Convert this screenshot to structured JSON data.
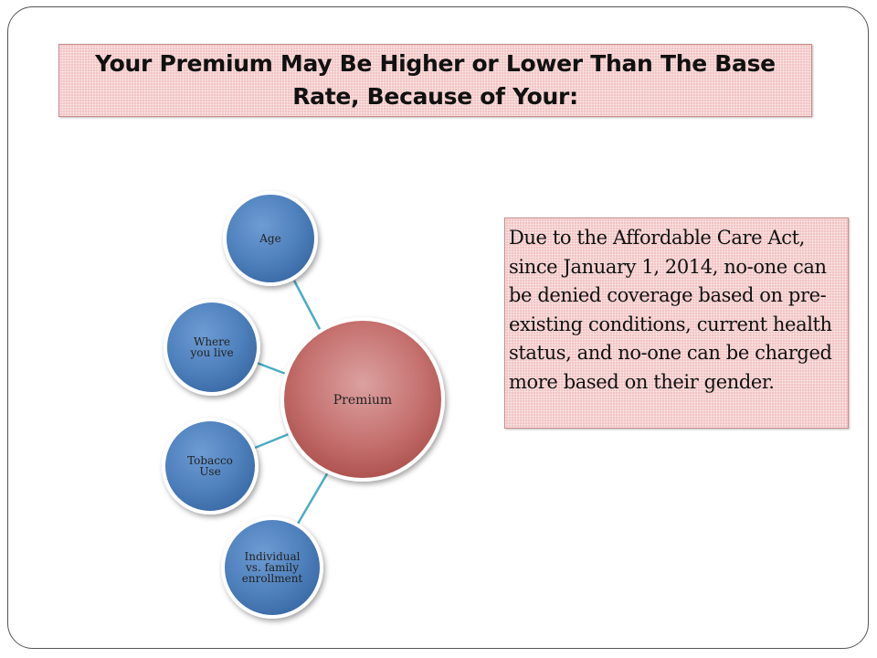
{
  "title": "Your Premium May Be Higher or Lower Than The Base Rate, Because of Your:",
  "diagram": {
    "center": "Premium",
    "factors": [
      {
        "label_lines": [
          "Age"
        ]
      },
      {
        "label_lines": [
          "Where",
          "you live"
        ]
      },
      {
        "label_lines": [
          "Tobacco",
          "Use"
        ]
      },
      {
        "label_lines": [
          "Individual",
          "vs. family",
          "enrollment"
        ]
      }
    ],
    "colors": {
      "factor_fill": "#4f81bd",
      "center_fill": "#c0504d",
      "connector": "#4bacc6"
    }
  },
  "note": "Due to the Affordable Care Act, since January 1, 2014, no-one can be denied coverage based on pre- existing conditions, current health status, and no-one can be charged more based on their gender."
}
